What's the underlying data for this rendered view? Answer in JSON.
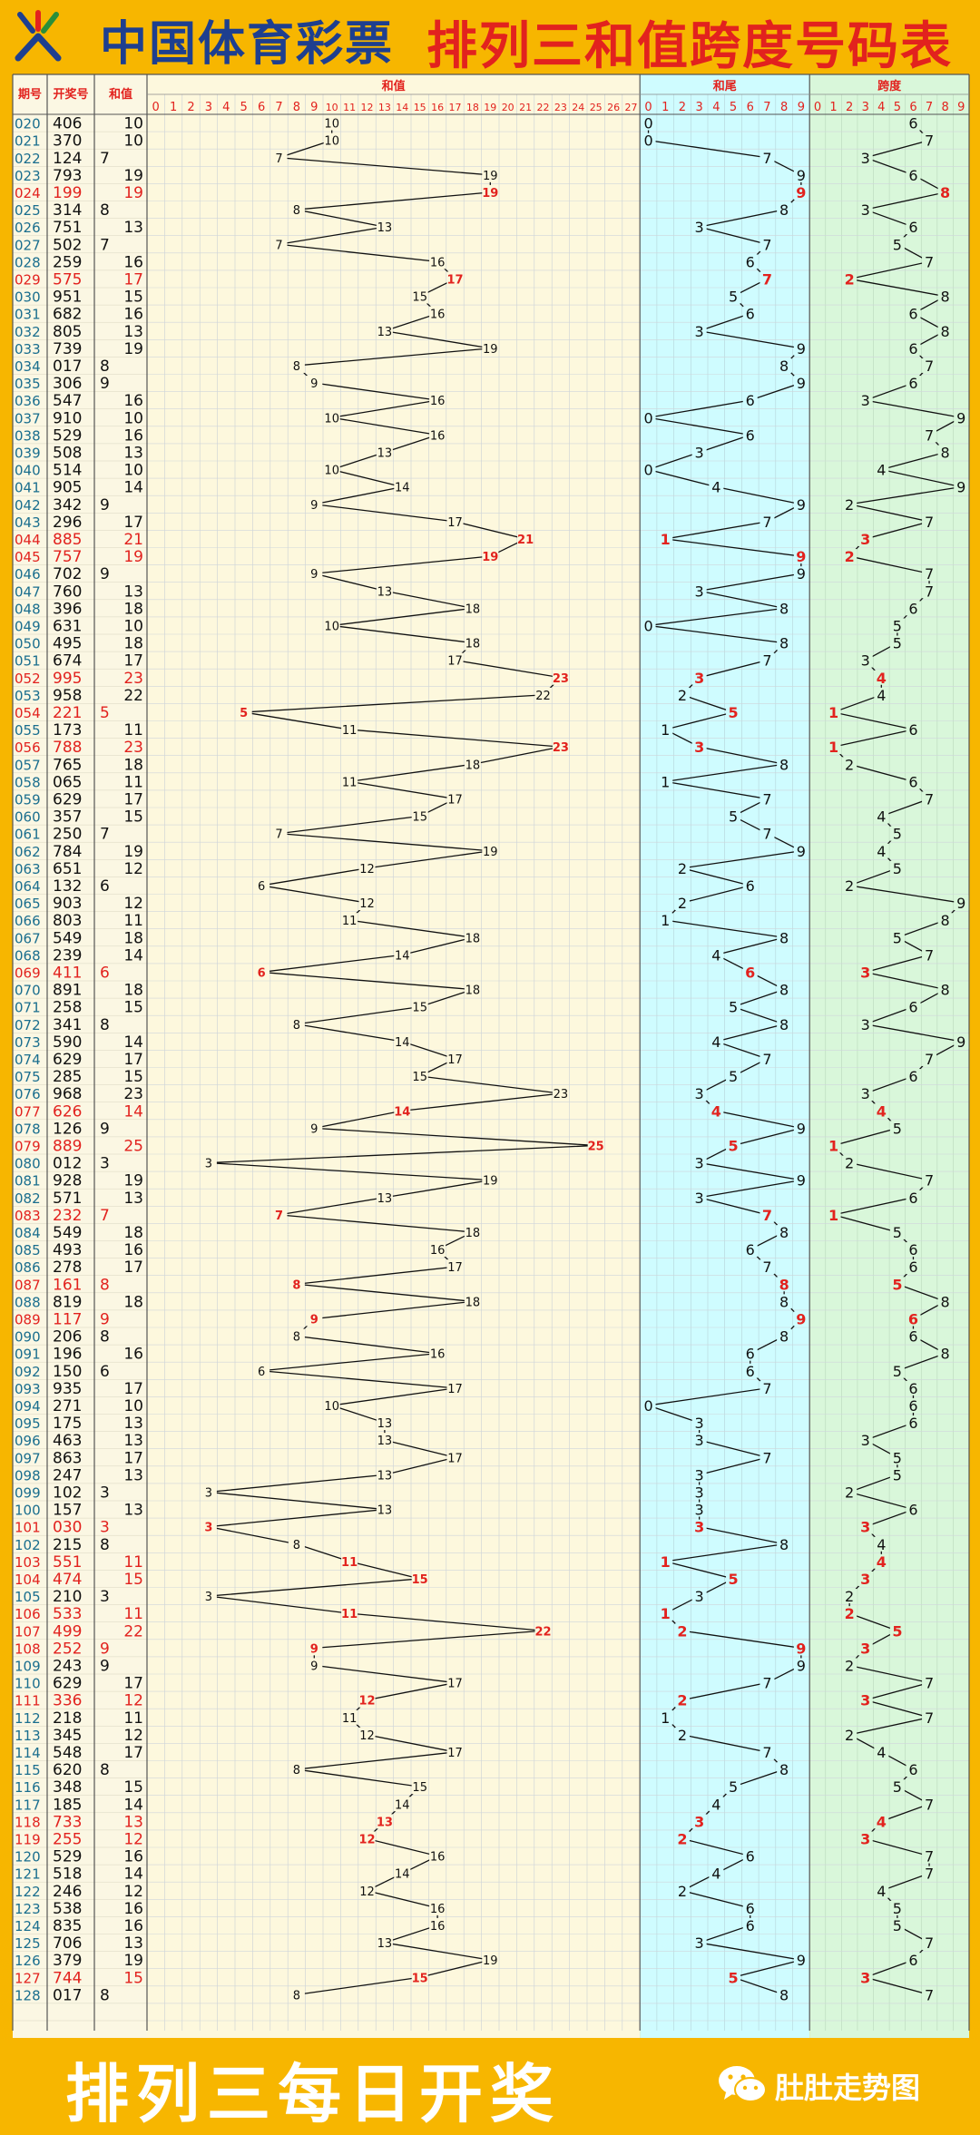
{
  "header": {
    "brand": "中国体育彩票",
    "title": "排列三和值跨度号码表"
  },
  "footer": {
    "slogan": "排列三每日开奖",
    "wechat": "肚肚走势图"
  },
  "colors": {
    "background": "#f7b600",
    "brand": "#1e3f8f",
    "title": "#e2221e",
    "highlight": "#e2221e",
    "text": "#111111",
    "issue": "#1a6e8e",
    "panel_left": "#fbf7e3",
    "panel_sum": "#fdf8dd",
    "panel_tail": "#cffcff",
    "panel_span": "#d9f7da"
  },
  "table": {
    "headers": {
      "issue": "期号",
      "number": "开奖号",
      "sum": "和值"
    },
    "sections": {
      "sum": "和值",
      "tail": "和尾",
      "span": "跨度"
    },
    "sum_axis": [
      "0",
      "1",
      "2",
      "3",
      "4",
      "5",
      "6",
      "7",
      "8",
      "9",
      "10",
      "11",
      "12",
      "13",
      "14",
      "15",
      "16",
      "17",
      "18",
      "19",
      "20",
      "21",
      "22",
      "23",
      "24",
      "25",
      "26",
      "27"
    ],
    "tail_axis": [
      "0",
      "1",
      "2",
      "3",
      "4",
      "5",
      "6",
      "7",
      "8",
      "9"
    ],
    "span_axis": [
      "0",
      "1",
      "2",
      "3",
      "4",
      "5",
      "6",
      "7",
      "8",
      "9"
    ]
  },
  "chart_data": {
    "type": "line",
    "title": "排列三和值跨度号码表",
    "series": [
      {
        "name": "和值",
        "values_key": "sum"
      },
      {
        "name": "和尾",
        "values_key": "tail"
      },
      {
        "name": "跨度",
        "values_key": "span"
      }
    ],
    "rows": [
      {
        "issue": "020",
        "number": "406",
        "sum": 10,
        "tail": 0,
        "span": 6,
        "hl": false
      },
      {
        "issue": "021",
        "number": "370",
        "sum": 10,
        "tail": 0,
        "span": 7,
        "hl": false
      },
      {
        "issue": "022",
        "number": "124",
        "sum": 7,
        "tail": 7,
        "span": 3,
        "hl": false
      },
      {
        "issue": "023",
        "number": "793",
        "sum": 19,
        "tail": 9,
        "span": 6,
        "hl": false
      },
      {
        "issue": "024",
        "number": "199",
        "sum": 19,
        "tail": 9,
        "span": 8,
        "hl": true
      },
      {
        "issue": "025",
        "number": "314",
        "sum": 8,
        "tail": 8,
        "span": 3,
        "hl": false
      },
      {
        "issue": "026",
        "number": "751",
        "sum": 13,
        "tail": 3,
        "span": 6,
        "hl": false
      },
      {
        "issue": "027",
        "number": "502",
        "sum": 7,
        "tail": 7,
        "span": 5,
        "hl": false
      },
      {
        "issue": "028",
        "number": "259",
        "sum": 16,
        "tail": 6,
        "span": 7,
        "hl": false
      },
      {
        "issue": "029",
        "number": "575",
        "sum": 17,
        "tail": 7,
        "span": 2,
        "hl": true
      },
      {
        "issue": "030",
        "number": "951",
        "sum": 15,
        "tail": 5,
        "span": 8,
        "hl": false
      },
      {
        "issue": "031",
        "number": "682",
        "sum": 16,
        "tail": 6,
        "span": 6,
        "hl": false
      },
      {
        "issue": "032",
        "number": "805",
        "sum": 13,
        "tail": 3,
        "span": 8,
        "hl": false
      },
      {
        "issue": "033",
        "number": "739",
        "sum": 19,
        "tail": 9,
        "span": 6,
        "hl": false
      },
      {
        "issue": "034",
        "number": "017",
        "sum": 8,
        "tail": 8,
        "span": 7,
        "hl": false
      },
      {
        "issue": "035",
        "number": "306",
        "sum": 9,
        "tail": 9,
        "span": 6,
        "hl": false
      },
      {
        "issue": "036",
        "number": "547",
        "sum": 16,
        "tail": 6,
        "span": 3,
        "hl": false
      },
      {
        "issue": "037",
        "number": "910",
        "sum": 10,
        "tail": 0,
        "span": 9,
        "hl": false
      },
      {
        "issue": "038",
        "number": "529",
        "sum": 16,
        "tail": 6,
        "span": 7,
        "hl": false
      },
      {
        "issue": "039",
        "number": "508",
        "sum": 13,
        "tail": 3,
        "span": 8,
        "hl": false
      },
      {
        "issue": "040",
        "number": "514",
        "sum": 10,
        "tail": 0,
        "span": 4,
        "hl": false
      },
      {
        "issue": "041",
        "number": "905",
        "sum": 14,
        "tail": 4,
        "span": 9,
        "hl": false
      },
      {
        "issue": "042",
        "number": "342",
        "sum": 9,
        "tail": 9,
        "span": 2,
        "hl": false
      },
      {
        "issue": "043",
        "number": "296",
        "sum": 17,
        "tail": 7,
        "span": 7,
        "hl": false
      },
      {
        "issue": "044",
        "number": "885",
        "sum": 21,
        "tail": 1,
        "span": 3,
        "hl": true
      },
      {
        "issue": "045",
        "number": "757",
        "sum": 19,
        "tail": 9,
        "span": 2,
        "hl": true
      },
      {
        "issue": "046",
        "number": "702",
        "sum": 9,
        "tail": 9,
        "span": 7,
        "hl": false
      },
      {
        "issue": "047",
        "number": "760",
        "sum": 13,
        "tail": 3,
        "span": 7,
        "hl": false
      },
      {
        "issue": "048",
        "number": "396",
        "sum": 18,
        "tail": 8,
        "span": 6,
        "hl": false
      },
      {
        "issue": "049",
        "number": "631",
        "sum": 10,
        "tail": 0,
        "span": 5,
        "hl": false
      },
      {
        "issue": "050",
        "number": "495",
        "sum": 18,
        "tail": 8,
        "span": 5,
        "hl": false
      },
      {
        "issue": "051",
        "number": "674",
        "sum": 17,
        "tail": 7,
        "span": 3,
        "hl": false
      },
      {
        "issue": "052",
        "number": "995",
        "sum": 23,
        "tail": 3,
        "span": 4,
        "hl": true
      },
      {
        "issue": "053",
        "number": "958",
        "sum": 22,
        "tail": 2,
        "span": 4,
        "hl": false
      },
      {
        "issue": "054",
        "number": "221",
        "sum": 5,
        "tail": 5,
        "span": 1,
        "hl": true
      },
      {
        "issue": "055",
        "number": "173",
        "sum": 11,
        "tail": 1,
        "span": 6,
        "hl": false
      },
      {
        "issue": "056",
        "number": "788",
        "sum": 23,
        "tail": 3,
        "span": 1,
        "hl": true
      },
      {
        "issue": "057",
        "number": "765",
        "sum": 18,
        "tail": 8,
        "span": 2,
        "hl": false
      },
      {
        "issue": "058",
        "number": "065",
        "sum": 11,
        "tail": 1,
        "span": 6,
        "hl": false
      },
      {
        "issue": "059",
        "number": "629",
        "sum": 17,
        "tail": 7,
        "span": 7,
        "hl": false
      },
      {
        "issue": "060",
        "number": "357",
        "sum": 15,
        "tail": 5,
        "span": 4,
        "hl": false
      },
      {
        "issue": "061",
        "number": "250",
        "sum": 7,
        "tail": 7,
        "span": 5,
        "hl": false
      },
      {
        "issue": "062",
        "number": "784",
        "sum": 19,
        "tail": 9,
        "span": 4,
        "hl": false
      },
      {
        "issue": "063",
        "number": "651",
        "sum": 12,
        "tail": 2,
        "span": 5,
        "hl": false
      },
      {
        "issue": "064",
        "number": "132",
        "sum": 6,
        "tail": 6,
        "span": 2,
        "hl": false
      },
      {
        "issue": "065",
        "number": "903",
        "sum": 12,
        "tail": 2,
        "span": 9,
        "hl": false
      },
      {
        "issue": "066",
        "number": "803",
        "sum": 11,
        "tail": 1,
        "span": 8,
        "hl": false
      },
      {
        "issue": "067",
        "number": "549",
        "sum": 18,
        "tail": 8,
        "span": 5,
        "hl": false
      },
      {
        "issue": "068",
        "number": "239",
        "sum": 14,
        "tail": 4,
        "span": 7,
        "hl": false
      },
      {
        "issue": "069",
        "number": "411",
        "sum": 6,
        "tail": 6,
        "span": 3,
        "hl": true
      },
      {
        "issue": "070",
        "number": "891",
        "sum": 18,
        "tail": 8,
        "span": 8,
        "hl": false
      },
      {
        "issue": "071",
        "number": "258",
        "sum": 15,
        "tail": 5,
        "span": 6,
        "hl": false
      },
      {
        "issue": "072",
        "number": "341",
        "sum": 8,
        "tail": 8,
        "span": 3,
        "hl": false
      },
      {
        "issue": "073",
        "number": "590",
        "sum": 14,
        "tail": 4,
        "span": 9,
        "hl": false
      },
      {
        "issue": "074",
        "number": "629",
        "sum": 17,
        "tail": 7,
        "span": 7,
        "hl": false
      },
      {
        "issue": "075",
        "number": "285",
        "sum": 15,
        "tail": 5,
        "span": 6,
        "hl": false
      },
      {
        "issue": "076",
        "number": "968",
        "sum": 23,
        "tail": 3,
        "span": 3,
        "hl": false
      },
      {
        "issue": "077",
        "number": "626",
        "sum": 14,
        "tail": 4,
        "span": 4,
        "hl": true
      },
      {
        "issue": "078",
        "number": "126",
        "sum": 9,
        "tail": 9,
        "span": 5,
        "hl": false
      },
      {
        "issue": "079",
        "number": "889",
        "sum": 25,
        "tail": 5,
        "span": 1,
        "hl": true
      },
      {
        "issue": "080",
        "number": "012",
        "sum": 3,
        "tail": 3,
        "span": 2,
        "hl": false
      },
      {
        "issue": "081",
        "number": "928",
        "sum": 19,
        "tail": 9,
        "span": 7,
        "hl": false
      },
      {
        "issue": "082",
        "number": "571",
        "sum": 13,
        "tail": 3,
        "span": 6,
        "hl": false
      },
      {
        "issue": "083",
        "number": "232",
        "sum": 7,
        "tail": 7,
        "span": 1,
        "hl": true
      },
      {
        "issue": "084",
        "number": "549",
        "sum": 18,
        "tail": 8,
        "span": 5,
        "hl": false
      },
      {
        "issue": "085",
        "number": "493",
        "sum": 16,
        "tail": 6,
        "span": 6,
        "hl": false
      },
      {
        "issue": "086",
        "number": "278",
        "sum": 17,
        "tail": 7,
        "span": 6,
        "hl": false
      },
      {
        "issue": "087",
        "number": "161",
        "sum": 8,
        "tail": 8,
        "span": 5,
        "hl": true
      },
      {
        "issue": "088",
        "number": "819",
        "sum": 18,
        "tail": 8,
        "span": 8,
        "hl": false
      },
      {
        "issue": "089",
        "number": "117",
        "sum": 9,
        "tail": 9,
        "span": 6,
        "hl": true
      },
      {
        "issue": "090",
        "number": "206",
        "sum": 8,
        "tail": 8,
        "span": 6,
        "hl": false
      },
      {
        "issue": "091",
        "number": "196",
        "sum": 16,
        "tail": 6,
        "span": 8,
        "hl": false
      },
      {
        "issue": "092",
        "number": "150",
        "sum": 6,
        "tail": 6,
        "span": 5,
        "hl": false
      },
      {
        "issue": "093",
        "number": "935",
        "sum": 17,
        "tail": 7,
        "span": 6,
        "hl": false
      },
      {
        "issue": "094",
        "number": "271",
        "sum": 10,
        "tail": 0,
        "span": 6,
        "hl": false
      },
      {
        "issue": "095",
        "number": "175",
        "sum": 13,
        "tail": 3,
        "span": 6,
        "hl": false
      },
      {
        "issue": "096",
        "number": "463",
        "sum": 13,
        "tail": 3,
        "span": 3,
        "hl": false
      },
      {
        "issue": "097",
        "number": "863",
        "sum": 17,
        "tail": 7,
        "span": 5,
        "hl": false
      },
      {
        "issue": "098",
        "number": "247",
        "sum": 13,
        "tail": 3,
        "span": 5,
        "hl": false
      },
      {
        "issue": "099",
        "number": "102",
        "sum": 3,
        "tail": 3,
        "span": 2,
        "hl": false
      },
      {
        "issue": "100",
        "number": "157",
        "sum": 13,
        "tail": 3,
        "span": 6,
        "hl": false
      },
      {
        "issue": "101",
        "number": "030",
        "sum": 3,
        "tail": 3,
        "span": 3,
        "hl": true
      },
      {
        "issue": "102",
        "number": "215",
        "sum": 8,
        "tail": 8,
        "span": 4,
        "hl": false
      },
      {
        "issue": "103",
        "number": "551",
        "sum": 11,
        "tail": 1,
        "span": 4,
        "hl": true
      },
      {
        "issue": "104",
        "number": "474",
        "sum": 15,
        "tail": 5,
        "span": 3,
        "hl": true
      },
      {
        "issue": "105",
        "number": "210",
        "sum": 3,
        "tail": 3,
        "span": 2,
        "hl": false
      },
      {
        "issue": "106",
        "number": "533",
        "sum": 11,
        "tail": 1,
        "span": 2,
        "hl": true
      },
      {
        "issue": "107",
        "number": "499",
        "sum": 22,
        "tail": 2,
        "span": 5,
        "hl": true
      },
      {
        "issue": "108",
        "number": "252",
        "sum": 9,
        "tail": 9,
        "span": 3,
        "hl": true
      },
      {
        "issue": "109",
        "number": "243",
        "sum": 9,
        "tail": 9,
        "span": 2,
        "hl": false
      },
      {
        "issue": "110",
        "number": "629",
        "sum": 17,
        "tail": 7,
        "span": 7,
        "hl": false
      },
      {
        "issue": "111",
        "number": "336",
        "sum": 12,
        "tail": 2,
        "span": 3,
        "hl": true
      },
      {
        "issue": "112",
        "number": "218",
        "sum": 11,
        "tail": 1,
        "span": 7,
        "hl": false
      },
      {
        "issue": "113",
        "number": "345",
        "sum": 12,
        "tail": 2,
        "span": 2,
        "hl": false
      },
      {
        "issue": "114",
        "number": "548",
        "sum": 17,
        "tail": 7,
        "span": 4,
        "hl": false
      },
      {
        "issue": "115",
        "number": "620",
        "sum": 8,
        "tail": 8,
        "span": 6,
        "hl": false
      },
      {
        "issue": "116",
        "number": "348",
        "sum": 15,
        "tail": 5,
        "span": 5,
        "hl": false
      },
      {
        "issue": "117",
        "number": "185",
        "sum": 14,
        "tail": 4,
        "span": 7,
        "hl": false
      },
      {
        "issue": "118",
        "number": "733",
        "sum": 13,
        "tail": 3,
        "span": 4,
        "hl": true
      },
      {
        "issue": "119",
        "number": "255",
        "sum": 12,
        "tail": 2,
        "span": 3,
        "hl": true
      },
      {
        "issue": "120",
        "number": "529",
        "sum": 16,
        "tail": 6,
        "span": 7,
        "hl": false
      },
      {
        "issue": "121",
        "number": "518",
        "sum": 14,
        "tail": 4,
        "span": 7,
        "hl": false
      },
      {
        "issue": "122",
        "number": "246",
        "sum": 12,
        "tail": 2,
        "span": 4,
        "hl": false
      },
      {
        "issue": "123",
        "number": "538",
        "sum": 16,
        "tail": 6,
        "span": 5,
        "hl": false
      },
      {
        "issue": "124",
        "number": "835",
        "sum": 16,
        "tail": 6,
        "span": 5,
        "hl": false
      },
      {
        "issue": "125",
        "number": "706",
        "sum": 13,
        "tail": 3,
        "span": 7,
        "hl": false
      },
      {
        "issue": "126",
        "number": "379",
        "sum": 19,
        "tail": 9,
        "span": 6,
        "hl": false
      },
      {
        "issue": "127",
        "number": "744",
        "sum": 15,
        "tail": 5,
        "span": 3,
        "hl": true
      },
      {
        "issue": "128",
        "number": "017",
        "sum": 8,
        "tail": 8,
        "span": 7,
        "hl": false
      }
    ],
    "sum_range": [
      0,
      27
    ],
    "tail_range": [
      0,
      9
    ],
    "span_range": [
      0,
      9
    ],
    "grid": true
  }
}
